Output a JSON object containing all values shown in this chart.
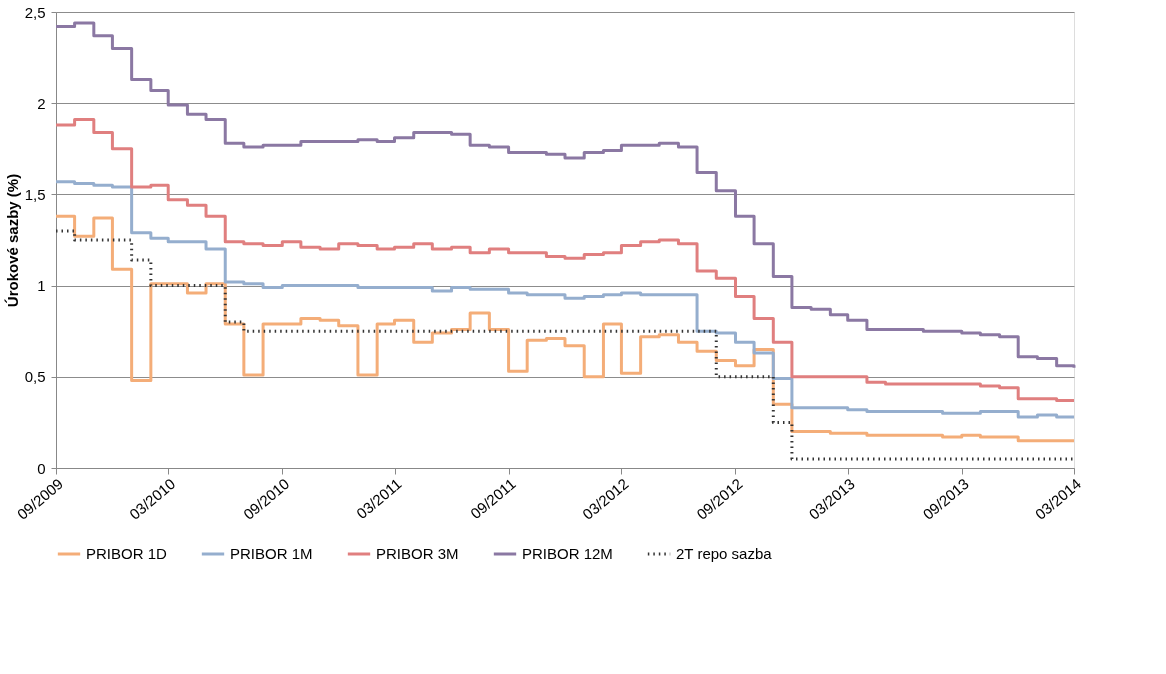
{
  "chart_data": {
    "type": "step",
    "ylabel": "Úrokové sazby (%)",
    "x": [
      "2009-09",
      "2009-10",
      "2009-11",
      "2009-12",
      "2010-01",
      "2010-02",
      "2010-03",
      "2010-04",
      "2010-05",
      "2010-06",
      "2010-07",
      "2010-08",
      "2010-09",
      "2010-10",
      "2010-11",
      "2010-12",
      "2011-01",
      "2011-02",
      "2011-03",
      "2011-04",
      "2011-05",
      "2011-06",
      "2011-07",
      "2011-08",
      "2011-09",
      "2011-10",
      "2011-11",
      "2011-12",
      "2012-01",
      "2012-02",
      "2012-03",
      "2012-04",
      "2012-05",
      "2012-06",
      "2012-07",
      "2012-08",
      "2012-09",
      "2012-10",
      "2012-11",
      "2012-12",
      "2013-01",
      "2013-02",
      "2013-03",
      "2013-04",
      "2013-05",
      "2013-06",
      "2013-07",
      "2013-08",
      "2013-09",
      "2013-10",
      "2013-11",
      "2013-12",
      "2014-01",
      "2014-02",
      "2014-03"
    ],
    "xlim": [
      "2009-09",
      "2014-03"
    ],
    "xticks": [
      {
        "value": "2009-09",
        "label": "09/2009"
      },
      {
        "value": "2010-03",
        "label": "03/2010"
      },
      {
        "value": "2010-09",
        "label": "09/2010"
      },
      {
        "value": "2011-03",
        "label": "03/2011"
      },
      {
        "value": "2011-09",
        "label": "09/2011"
      },
      {
        "value": "2012-03",
        "label": "03/2012"
      },
      {
        "value": "2012-09",
        "label": "09/2012"
      },
      {
        "value": "2013-03",
        "label": "03/2013"
      },
      {
        "value": "2013-09",
        "label": "09/2013"
      },
      {
        "value": "2014-03",
        "label": "03/2014"
      }
    ],
    "ylim": [
      0,
      2.5
    ],
    "yticks": [
      0,
      {
        "value": 0.5,
        "label": "0,5"
      },
      1,
      {
        "value": 1.5,
        "label": "1,5"
      },
      2,
      {
        "value": 2.5,
        "label": "2,5"
      }
    ],
    "grid": "y",
    "legend": "bottom",
    "line_style": "solid",
    "series": [
      {
        "name": "PRIBOR 1D",
        "color": "#f4ad78",
        "values": [
          1.38,
          1.27,
          1.37,
          1.09,
          0.48,
          1.01,
          1.01,
          0.96,
          1.01,
          0.79,
          0.51,
          0.79,
          0.79,
          0.82,
          0.81,
          0.78,
          0.51,
          0.79,
          0.81,
          0.69,
          0.74,
          0.76,
          0.85,
          0.76,
          0.53,
          0.7,
          0.71,
          0.67,
          0.5,
          0.79,
          0.52,
          0.72,
          0.73,
          0.69,
          0.64,
          0.59,
          0.56,
          0.65,
          0.35,
          0.2,
          0.2,
          0.19,
          0.19,
          0.18,
          0.18,
          0.18,
          0.18,
          0.17,
          0.18,
          0.17,
          0.17,
          0.15,
          0.15,
          0.15,
          0.15
        ]
      },
      {
        "name": "PRIBOR 1M",
        "color": "#95aece",
        "values": [
          1.57,
          1.56,
          1.55,
          1.54,
          1.29,
          1.26,
          1.24,
          1.24,
          1.2,
          1.02,
          1.01,
          0.99,
          1.0,
          1.0,
          1.0,
          1.0,
          0.99,
          0.99,
          0.99,
          0.99,
          0.97,
          0.99,
          0.98,
          0.98,
          0.96,
          0.95,
          0.95,
          0.93,
          0.94,
          0.95,
          0.96,
          0.95,
          0.95,
          0.95,
          0.75,
          0.74,
          0.69,
          0.63,
          0.49,
          0.33,
          0.33,
          0.33,
          0.32,
          0.31,
          0.31,
          0.31,
          0.31,
          0.3,
          0.3,
          0.31,
          0.31,
          0.28,
          0.29,
          0.28,
          0.28
        ]
      },
      {
        "name": "PRIBOR 3M",
        "color": "#e07f7f",
        "values": [
          1.88,
          1.91,
          1.84,
          1.75,
          1.54,
          1.55,
          1.47,
          1.44,
          1.38,
          1.24,
          1.23,
          1.22,
          1.24,
          1.21,
          1.2,
          1.23,
          1.22,
          1.2,
          1.21,
          1.23,
          1.2,
          1.21,
          1.18,
          1.2,
          1.18,
          1.18,
          1.16,
          1.15,
          1.17,
          1.18,
          1.22,
          1.24,
          1.25,
          1.23,
          1.08,
          1.04,
          0.94,
          0.82,
          0.69,
          0.5,
          0.5,
          0.5,
          0.5,
          0.47,
          0.46,
          0.46,
          0.46,
          0.46,
          0.46,
          0.45,
          0.44,
          0.38,
          0.38,
          0.37,
          0.37
        ]
      },
      {
        "name": "PRIBOR 12M",
        "color": "#8b78a3",
        "values": [
          2.42,
          2.44,
          2.37,
          2.3,
          2.13,
          2.07,
          1.99,
          1.94,
          1.91,
          1.78,
          1.76,
          1.77,
          1.77,
          1.79,
          1.79,
          1.79,
          1.8,
          1.79,
          1.81,
          1.84,
          1.84,
          1.83,
          1.77,
          1.76,
          1.73,
          1.73,
          1.72,
          1.7,
          1.73,
          1.74,
          1.77,
          1.77,
          1.78,
          1.76,
          1.62,
          1.52,
          1.38,
          1.23,
          1.05,
          0.88,
          0.87,
          0.84,
          0.81,
          0.76,
          0.76,
          0.76,
          0.75,
          0.75,
          0.74,
          0.73,
          0.72,
          0.61,
          0.6,
          0.56,
          0.55
        ]
      },
      {
        "name": "2T repo sazba",
        "color": "#333333",
        "line_style": "dotted",
        "values": [
          1.3,
          1.25,
          1.25,
          1.25,
          1.14,
          1.0,
          1.0,
          1.0,
          1.0,
          0.8,
          0.75,
          0.75,
          0.75,
          0.75,
          0.75,
          0.75,
          0.75,
          0.75,
          0.75,
          0.75,
          0.75,
          0.75,
          0.75,
          0.75,
          0.75,
          0.75,
          0.75,
          0.75,
          0.75,
          0.75,
          0.75,
          0.75,
          0.75,
          0.75,
          0.75,
          0.5,
          0.5,
          0.5,
          0.25,
          0.05,
          0.05,
          0.05,
          0.05,
          0.05,
          0.05,
          0.05,
          0.05,
          0.05,
          0.05,
          0.05,
          0.05,
          0.05,
          0.05,
          0.05,
          0.05
        ]
      }
    ]
  }
}
